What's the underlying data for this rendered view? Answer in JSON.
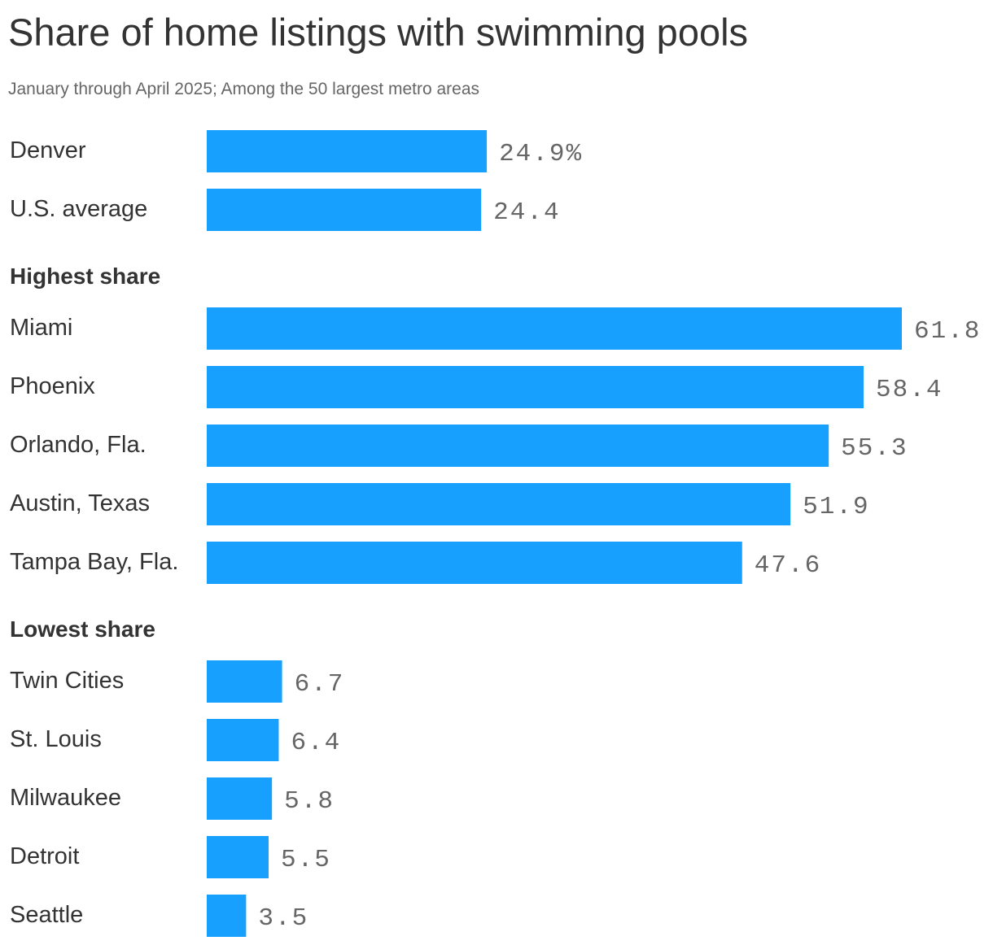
{
  "chart_data": {
    "type": "bar",
    "orientation": "horizontal",
    "title": "Share of home listings with swimming pools",
    "subtitle": "January through April 2025; Among the 50 largest metro areas",
    "xlim": [
      0,
      61.8
    ],
    "grid": false,
    "legend": "none",
    "bar_color": "#18a0ff",
    "groups": [
      {
        "heading": "",
        "rows": [
          {
            "category": "Denver",
            "value": 24.9,
            "label": "24.9%"
          },
          {
            "category": "U.S. average",
            "value": 24.4,
            "label": "24.4"
          }
        ]
      },
      {
        "heading": "Highest share",
        "rows": [
          {
            "category": "Miami",
            "value": 61.8,
            "label": "61.8"
          },
          {
            "category": "Phoenix",
            "value": 58.4,
            "label": "58.4"
          },
          {
            "category": "Orlando, Fla.",
            "value": 55.3,
            "label": "55.3"
          },
          {
            "category": "Austin, Texas",
            "value": 51.9,
            "label": "51.9"
          },
          {
            "category": "Tampa Bay, Fla.",
            "value": 47.6,
            "label": "47.6"
          }
        ]
      },
      {
        "heading": "Lowest share",
        "rows": [
          {
            "category": "Twin Cities",
            "value": 6.7,
            "label": "6.7"
          },
          {
            "category": "St. Louis",
            "value": 6.4,
            "label": "6.4"
          },
          {
            "category": "Milwaukee",
            "value": 5.8,
            "label": "5.8"
          },
          {
            "category": "Detroit",
            "value": 5.5,
            "label": "5.5"
          },
          {
            "category": "Seattle",
            "value": 3.5,
            "label": "3.5"
          }
        ]
      }
    ]
  }
}
